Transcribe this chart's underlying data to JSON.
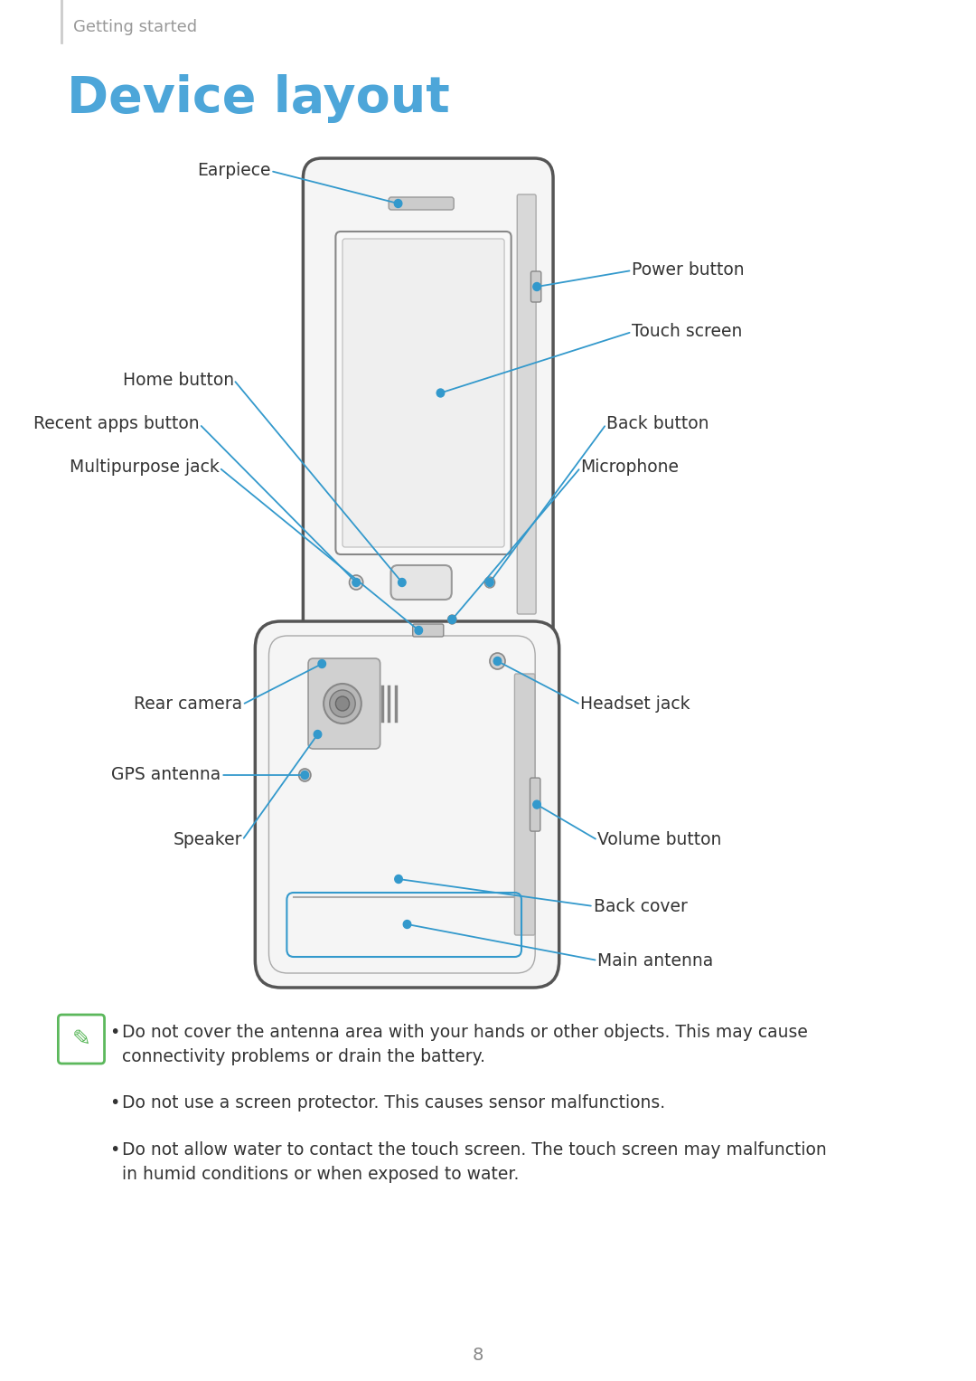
{
  "title": "Device layout",
  "header": "Getting started",
  "page_number": "8",
  "bg_color": "#ffffff",
  "title_color": "#4da6d9",
  "header_color": "#999999",
  "line_color": "#3399cc",
  "text_color": "#333333",
  "note_color": "#444444",
  "phone_edge": "#555555",
  "phone_fill": "#ffffff",
  "screen_fill": "#ffffff",
  "screen_edge": "#888888",
  "button_fill": "#dddddd",
  "side_fill": "#cccccc",
  "note_lines": [
    "Do not cover the antenna area with your hands or other objects. This may cause\nconnectivity problems or drain the battery.",
    "Do not use a screen protector. This causes sensor malfunctions.",
    "Do not allow water to contact the touch screen. The touch screen may malfunction\nin humid conditions or when exposed to water."
  ],
  "note_icon_color": "#5cb85c"
}
